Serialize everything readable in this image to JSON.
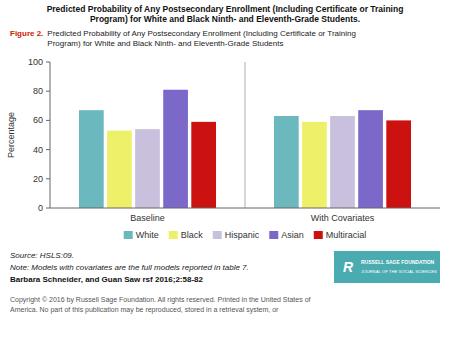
{
  "chart_data": {
    "type": "bar",
    "title": "Predicted Probability of Any Postsecondary Enrollment (Including Certificate or Training\nProgram) for White and Black Ninth- and Eleventh-Grade Students.",
    "subtitle": "Predicted Probability of Any Postsecondary Enrollment (Including Certificate or Training\nProgram) for White and Black Ninth- and Eleventh-Grade Students",
    "y_label": "Percentage",
    "categories": [
      "Baseline",
      "With Covariates"
    ],
    "series": [
      {
        "name": "White",
        "color": "#6BB8BE",
        "values": [
          67,
          63
        ]
      },
      {
        "name": "Black",
        "color": "#EEF06A",
        "values": [
          53,
          59
        ]
      },
      {
        "name": "Hispanic",
        "color": "#C8C0DC",
        "values": [
          54,
          63
        ]
      },
      {
        "name": "Asian",
        "color": "#7B68C8",
        "values": [
          81,
          67
        ]
      },
      {
        "name": "Multiracial",
        "color": "#CC1111",
        "values": [
          59,
          60
        ]
      }
    ],
    "ylim": [
      0,
      100
    ],
    "yticks": [
      0,
      20,
      40,
      60,
      80,
      100
    ],
    "grid": false,
    "legend": "bottom",
    "annotations": [
      "Figure 2.",
      "Source: HSLS:09.",
      "Note: Models with covariates are the full models reported in table 7.",
      "Barbara Schneider, and Guan Saw rsf 2016;2:58-82",
      "R",
      "RUSSELL SAGE FOUNDATION",
      "JOURNAL OF THE SOCIAL SCIENCES",
      "Copyright © 2016 by Russell Sage Foundation. All rights reserved. Printed in the United States of\nAmerica. No part of this publication may be reproduced, stored in a retrieval system, or"
    ]
  }
}
